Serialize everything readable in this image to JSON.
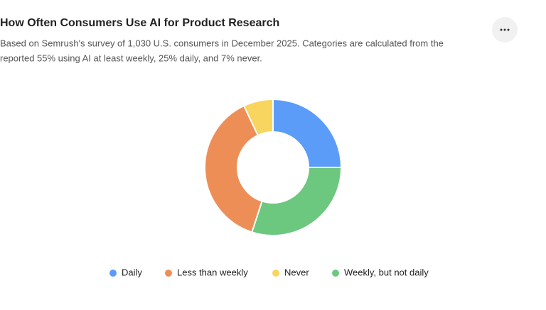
{
  "chart_data": {
    "type": "donut",
    "title": "How Often Consumers Use AI for Product Research",
    "subtitle": [
      "Based on Semrush's survey of 1,030 U.S. consumers in December 2025. Categories are calculated from the",
      "reported 55% using AI at least weekly, 25% daily, and 7% never."
    ],
    "categories": [
      "Daily",
      "Weekly, but not daily",
      "Less than weekly",
      "Never"
    ],
    "values": [
      25,
      30,
      38,
      7
    ],
    "colors": [
      "#5b9cf8",
      "#6cc77f",
      "#ee8e57",
      "#f7d55e"
    ]
  }
}
